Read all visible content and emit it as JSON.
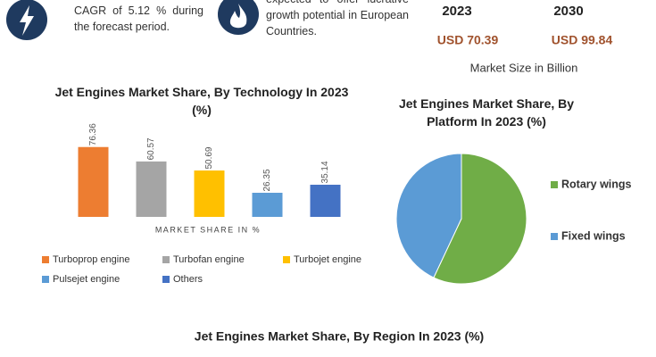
{
  "header": {
    "cagr_text": "CAGR of 5.12 % during the forecast period.",
    "growth_text": "expected to offer lucrative growth potential in European Countries.",
    "years": [
      "2023",
      "2030"
    ],
    "market_sizes": [
      "USD 70.39",
      "USD 99.84"
    ],
    "market_size_caption": "Market Size in Billion"
  },
  "chart_data": [
    {
      "type": "bar",
      "title": "Jet Engines Market Share, By Technology In 2023 (%)",
      "xlabel": "MARKET SHARE IN %",
      "categories": [
        "Turboprop engine",
        "Turbofan engine",
        "Turbojet engine",
        "Pulsejet engine",
        "Others"
      ],
      "values": [
        76.36,
        60.57,
        50.69,
        26.35,
        35.14
      ],
      "colors": [
        "#ed7d31",
        "#a5a5a5",
        "#ffc000",
        "#5b9bd5",
        "#4472c4"
      ],
      "ylim": [
        0,
        80
      ]
    },
    {
      "type": "pie",
      "title": "Jet Engines Market Share, By Platform In 2023 (%)",
      "categories": [
        "Rotary wings",
        "Fixed wings"
      ],
      "values": [
        57,
        43
      ],
      "colors": [
        "#70ad47",
        "#5b9bd5"
      ]
    }
  ],
  "footer": {
    "title": "Jet Engines Market Share, By Region In 2023 (%)"
  }
}
